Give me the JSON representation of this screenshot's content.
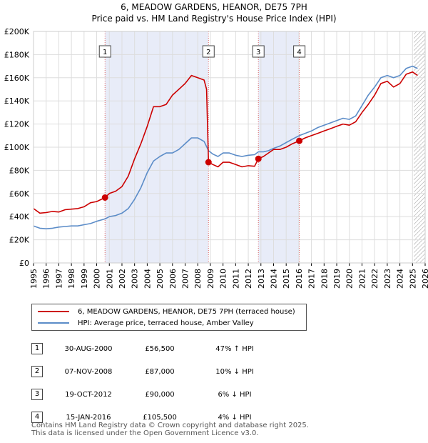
{
  "title_line1": "6, MEADOW GARDENS, HEANOR, DE75 7PH",
  "title_line2": "Price paid vs. HM Land Registry's House Price Index (HPI)",
  "chart_data": {
    "type": "line",
    "title": "Price paid vs. HM Land Registry's House Price Index (HPI)",
    "xlim": [
      1995,
      2026
    ],
    "ylim": [
      0,
      200000
    ],
    "y_ticks": [
      {
        "value": 0,
        "label": "£0"
      },
      {
        "value": 20000,
        "label": "£20K"
      },
      {
        "value": 40000,
        "label": "£40K"
      },
      {
        "value": 60000,
        "label": "£60K"
      },
      {
        "value": 80000,
        "label": "£80K"
      },
      {
        "value": 100000,
        "label": "£100K"
      },
      {
        "value": 120000,
        "label": "£120K"
      },
      {
        "value": 140000,
        "label": "£140K"
      },
      {
        "value": 160000,
        "label": "£160K"
      },
      {
        "value": 180000,
        "label": "£180K"
      },
      {
        "value": 200000,
        "label": "£200K"
      }
    ],
    "x_ticks": [
      "1995",
      "1996",
      "1997",
      "1998",
      "1999",
      "2000",
      "2001",
      "2002",
      "2003",
      "2004",
      "2005",
      "2006",
      "2007",
      "2008",
      "2009",
      "2010",
      "2011",
      "2012",
      "2013",
      "2014",
      "2015",
      "2016",
      "2017",
      "2018",
      "2019",
      "2020",
      "2021",
      "2022",
      "2023",
      "2024",
      "2025",
      "2026"
    ],
    "shaded_periods": [
      [
        2000.66,
        2008.85
      ],
      [
        2012.8,
        2016.04
      ]
    ],
    "future_hatch_start": 2025.1,
    "series": [
      {
        "name": "6, MEADOW GARDENS, HEANOR, DE75 7PH (terraced house)",
        "color": "#cc0000",
        "points": [
          [
            1995.0,
            47000
          ],
          [
            1995.5,
            43000
          ],
          [
            1996.0,
            43500
          ],
          [
            1996.5,
            44500
          ],
          [
            1997.0,
            44000
          ],
          [
            1997.5,
            46000
          ],
          [
            1998.0,
            46500
          ],
          [
            1998.5,
            47000
          ],
          [
            1999.0,
            48500
          ],
          [
            1999.5,
            52000
          ],
          [
            2000.0,
            53000
          ],
          [
            2000.66,
            56500
          ],
          [
            2001.0,
            60000
          ],
          [
            2001.5,
            62000
          ],
          [
            2002.0,
            66000
          ],
          [
            2002.5,
            75000
          ],
          [
            2003.0,
            90000
          ],
          [
            2003.5,
            103000
          ],
          [
            2004.0,
            118000
          ],
          [
            2004.5,
            135000
          ],
          [
            2005.0,
            135000
          ],
          [
            2005.5,
            137000
          ],
          [
            2006.0,
            145000
          ],
          [
            2006.5,
            150000
          ],
          [
            2007.0,
            155000
          ],
          [
            2007.5,
            162000
          ],
          [
            2008.0,
            160000
          ],
          [
            2008.5,
            158000
          ],
          [
            2008.7,
            150000
          ],
          [
            2008.85,
            87000
          ],
          [
            2009.2,
            85000
          ],
          [
            2009.6,
            83000
          ],
          [
            2010.0,
            87000
          ],
          [
            2010.5,
            87000
          ],
          [
            2011.0,
            85000
          ],
          [
            2011.5,
            83000
          ],
          [
            2012.0,
            84000
          ],
          [
            2012.5,
            83500
          ],
          [
            2012.8,
            90000
          ],
          [
            2013.2,
            92000
          ],
          [
            2013.6,
            95000
          ],
          [
            2014.0,
            98000
          ],
          [
            2014.5,
            98000
          ],
          [
            2015.0,
            100000
          ],
          [
            2015.5,
            103000
          ],
          [
            2016.04,
            105500
          ],
          [
            2016.5,
            108000
          ],
          [
            2017.0,
            110000
          ],
          [
            2017.5,
            112000
          ],
          [
            2018.0,
            114000
          ],
          [
            2018.5,
            116000
          ],
          [
            2019.0,
            118000
          ],
          [
            2019.5,
            120000
          ],
          [
            2020.0,
            119000
          ],
          [
            2020.5,
            122000
          ],
          [
            2021.0,
            130000
          ],
          [
            2021.5,
            137000
          ],
          [
            2022.0,
            145000
          ],
          [
            2022.5,
            155000
          ],
          [
            2023.0,
            157000
          ],
          [
            2023.5,
            152000
          ],
          [
            2024.0,
            155000
          ],
          [
            2024.5,
            163000
          ],
          [
            2025.0,
            165000
          ],
          [
            2025.4,
            162000
          ]
        ]
      },
      {
        "name": "HPI: Average price, terraced house, Amber Valley",
        "color": "#5b8cc8",
        "points": [
          [
            1995.0,
            32000
          ],
          [
            1995.5,
            30000
          ],
          [
            1996.0,
            29500
          ],
          [
            1996.5,
            30000
          ],
          [
            1997.0,
            31000
          ],
          [
            1997.5,
            31500
          ],
          [
            1998.0,
            32000
          ],
          [
            1998.5,
            32000
          ],
          [
            1999.0,
            33000
          ],
          [
            1999.5,
            34000
          ],
          [
            2000.0,
            36000
          ],
          [
            2000.66,
            38000
          ],
          [
            2001.0,
            40000
          ],
          [
            2001.5,
            41000
          ],
          [
            2002.0,
            43000
          ],
          [
            2002.5,
            47000
          ],
          [
            2003.0,
            55000
          ],
          [
            2003.5,
            65000
          ],
          [
            2004.0,
            78000
          ],
          [
            2004.5,
            88000
          ],
          [
            2005.0,
            92000
          ],
          [
            2005.5,
            95000
          ],
          [
            2006.0,
            95000
          ],
          [
            2006.5,
            98000
          ],
          [
            2007.0,
            103000
          ],
          [
            2007.5,
            108000
          ],
          [
            2008.0,
            108000
          ],
          [
            2008.5,
            105000
          ],
          [
            2008.85,
            97000
          ],
          [
            2009.2,
            94000
          ],
          [
            2009.6,
            92000
          ],
          [
            2010.0,
            95000
          ],
          [
            2010.5,
            95000
          ],
          [
            2011.0,
            93000
          ],
          [
            2011.5,
            92000
          ],
          [
            2012.0,
            93000
          ],
          [
            2012.5,
            93500
          ],
          [
            2012.8,
            96000
          ],
          [
            2013.2,
            96000
          ],
          [
            2013.6,
            97000
          ],
          [
            2014.0,
            99000
          ],
          [
            2014.5,
            101000
          ],
          [
            2015.0,
            104000
          ],
          [
            2015.5,
            107000
          ],
          [
            2016.04,
            110000
          ],
          [
            2016.5,
            112000
          ],
          [
            2017.0,
            114000
          ],
          [
            2017.5,
            117000
          ],
          [
            2018.0,
            119000
          ],
          [
            2018.5,
            121000
          ],
          [
            2019.0,
            123000
          ],
          [
            2019.5,
            125000
          ],
          [
            2020.0,
            124000
          ],
          [
            2020.5,
            127000
          ],
          [
            2021.0,
            136000
          ],
          [
            2021.5,
            145000
          ],
          [
            2022.0,
            152000
          ],
          [
            2022.5,
            160000
          ],
          [
            2023.0,
            162000
          ],
          [
            2023.5,
            160000
          ],
          [
            2024.0,
            162000
          ],
          [
            2024.5,
            168000
          ],
          [
            2025.0,
            170000
          ],
          [
            2025.4,
            168000
          ]
        ]
      }
    ],
    "sale_markers": [
      {
        "label": "1",
        "x": 2000.66,
        "value": 56500
      },
      {
        "label": "2",
        "x": 2008.85,
        "value": 87000
      },
      {
        "label": "3",
        "x": 2012.8,
        "value": 90000
      },
      {
        "label": "4",
        "x": 2016.04,
        "value": 105500
      }
    ]
  },
  "legend": {
    "property_label": "6, MEADOW GARDENS, HEANOR, DE75 7PH (terraced house)",
    "hpi_label": "HPI: Average price, terraced house, Amber Valley"
  },
  "sales": [
    {
      "num": "1",
      "date": "30-AUG-2000",
      "price": "£56,500",
      "hpi": "47% ↑ HPI"
    },
    {
      "num": "2",
      "date": "07-NOV-2008",
      "price": "£87,000",
      "hpi": "10% ↓ HPI"
    },
    {
      "num": "3",
      "date": "19-OCT-2012",
      "price": "£90,000",
      "hpi": "6% ↓ HPI"
    },
    {
      "num": "4",
      "date": "15-JAN-2016",
      "price": "£105,500",
      "hpi": "4% ↓ HPI"
    }
  ],
  "footer_line1": "Contains HM Land Registry data © Crown copyright and database right 2025.",
  "footer_line2": "This data is licensed under the Open Government Licence v3.0."
}
